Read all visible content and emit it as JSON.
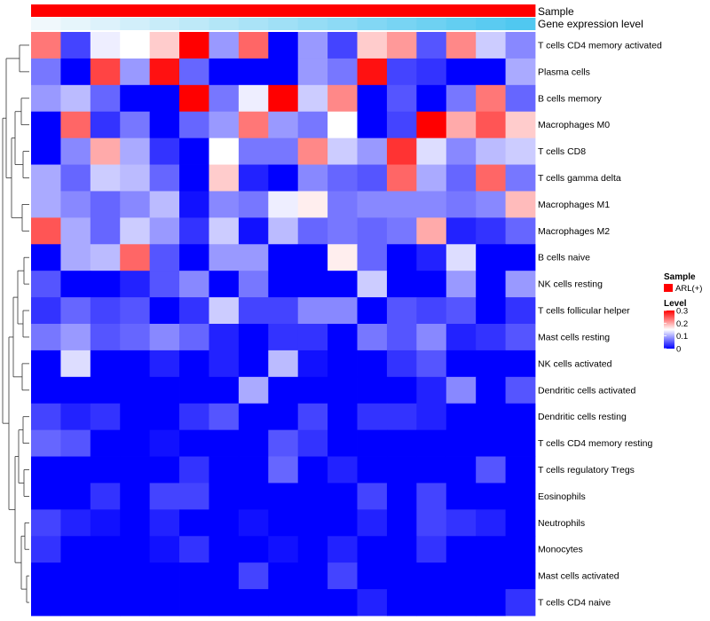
{
  "chart_data": {
    "type": "heatmap",
    "annotation_labels": [
      "Sample",
      "Gene expression level"
    ],
    "rows": [
      "T cells CD4 memory activated",
      "Plasma cells",
      "B cells memory",
      "Macrophages M0",
      "T cells CD8",
      "T cells gamma delta",
      "Macrophages M1",
      "Macrophages M2",
      "B cells naive",
      "NK cells resting",
      "T cells follicular helper",
      "Mast cells resting",
      "NK cells activated",
      "Dendritic cells activated",
      "Dendritic cells resting",
      "T cells CD4 memory resting",
      "T cells regulatory  Tregs",
      "Eosinophils",
      "Neutrophils",
      "Monocytes",
      "Mast cells activated",
      "T cells CD4 naive"
    ],
    "n_samples": 17,
    "values": [
      [
        0.23,
        0.04,
        0.14,
        0.15,
        0.18,
        0.3,
        0.09,
        0.24,
        0.0,
        0.09,
        0.04,
        0.18,
        0.21,
        0.05,
        0.22,
        0.12,
        0.08
      ],
      [
        0.07,
        0.0,
        0.26,
        0.09,
        0.29,
        0.06,
        0.0,
        0.0,
        0.0,
        0.09,
        0.07,
        0.29,
        0.04,
        0.03,
        0.0,
        0.0,
        0.1
      ],
      [
        0.09,
        0.11,
        0.06,
        0.0,
        0.0,
        0.3,
        0.07,
        0.14,
        0.3,
        0.12,
        0.22,
        0.0,
        0.05,
        0.0,
        0.07,
        0.23,
        0.06
      ],
      [
        0.0,
        0.24,
        0.03,
        0.07,
        0.0,
        0.06,
        0.09,
        0.23,
        0.09,
        0.07,
        0.15,
        0.0,
        0.04,
        0.3,
        0.2,
        0.25,
        0.18
      ],
      [
        0.0,
        0.08,
        0.2,
        0.1,
        0.03,
        0.0,
        0.15,
        0.07,
        0.07,
        0.22,
        0.12,
        0.09,
        0.27,
        0.13,
        0.08,
        0.11,
        0.12
      ],
      [
        0.1,
        0.06,
        0.12,
        0.11,
        0.06,
        0.0,
        0.18,
        0.02,
        0.0,
        0.08,
        0.06,
        0.05,
        0.24,
        0.1,
        0.06,
        0.24,
        0.07
      ],
      [
        0.1,
        0.08,
        0.06,
        0.08,
        0.11,
        0.01,
        0.08,
        0.07,
        0.14,
        0.16,
        0.07,
        0.08,
        0.08,
        0.08,
        0.07,
        0.08,
        0.19
      ],
      [
        0.25,
        0.1,
        0.06,
        0.12,
        0.09,
        0.03,
        0.12,
        0.01,
        0.11,
        0.06,
        0.07,
        0.06,
        0.07,
        0.2,
        0.02,
        0.03,
        0.06
      ],
      [
        0.0,
        0.1,
        0.11,
        0.24,
        0.05,
        0.0,
        0.09,
        0.09,
        0.0,
        0.0,
        0.16,
        0.06,
        0.0,
        0.02,
        0.13,
        0.0,
        0.0
      ],
      [
        0.05,
        0.0,
        0.0,
        0.02,
        0.05,
        0.08,
        0.0,
        0.07,
        0.0,
        0.0,
        0.0,
        0.12,
        0.0,
        0.0,
        0.09,
        0.0,
        0.09
      ],
      [
        0.03,
        0.06,
        0.04,
        0.05,
        0.0,
        0.03,
        0.12,
        0.04,
        0.04,
        0.08,
        0.08,
        0.0,
        0.05,
        0.04,
        0.05,
        0.0,
        0.03
      ],
      [
        0.07,
        0.09,
        0.05,
        0.06,
        0.08,
        0.06,
        0.02,
        0.0,
        0.03,
        0.03,
        0.0,
        0.07,
        0.05,
        0.08,
        0.02,
        0.03,
        0.05
      ],
      [
        0.0,
        0.13,
        0.0,
        0.0,
        0.02,
        0.0,
        0.02,
        0.0,
        0.11,
        0.01,
        0.0,
        0.0,
        0.03,
        0.05,
        0.0,
        0.0,
        0.0
      ],
      [
        0.0,
        0.0,
        0.0,
        0.0,
        0.0,
        0.0,
        0.0,
        0.1,
        0.0,
        0.0,
        0.0,
        0.0,
        0.0,
        0.02,
        0.08,
        0.0,
        0.05
      ],
      [
        0.04,
        0.02,
        0.03,
        0.0,
        0.0,
        0.03,
        0.05,
        0.0,
        0.0,
        0.04,
        0.0,
        0.03,
        0.03,
        0.02,
        0.0,
        0.0,
        0.0
      ],
      [
        0.06,
        0.05,
        0.0,
        0.0,
        0.01,
        0.0,
        0.0,
        0.0,
        0.05,
        0.03,
        0.0,
        0.0,
        0.0,
        0.0,
        0.0,
        0.0,
        0.0
      ],
      [
        0.0,
        0.0,
        0.0,
        0.0,
        0.0,
        0.03,
        0.0,
        0.0,
        0.06,
        0.0,
        0.02,
        0.0,
        0.0,
        0.0,
        0.0,
        0.05,
        0.0
      ],
      [
        0.0,
        0.0,
        0.03,
        0.0,
        0.04,
        0.04,
        0.0,
        0.0,
        0.0,
        0.0,
        0.0,
        0.04,
        0.0,
        0.04,
        0.0,
        0.0,
        0.0
      ],
      [
        0.04,
        0.02,
        0.01,
        0.0,
        0.02,
        0.0,
        0.0,
        0.01,
        0.0,
        0.0,
        0.0,
        0.02,
        0.0,
        0.04,
        0.03,
        0.02,
        0.0
      ],
      [
        0.03,
        0.0,
        0.0,
        0.0,
        0.01,
        0.03,
        0.0,
        0.0,
        0.01,
        0.0,
        0.02,
        0.0,
        0.0,
        0.03,
        0.0,
        0.0,
        0.0
      ],
      [
        0.0,
        0.0,
        0.0,
        0.0,
        0.0,
        0.0,
        0.0,
        0.04,
        0.0,
        0.0,
        0.04,
        0.0,
        0.0,
        0.0,
        0.0,
        0.0,
        0.0
      ],
      [
        0.0,
        0.0,
        0.0,
        0.0,
        0.0,
        0.0,
        0.0,
        0.0,
        0.0,
        0.0,
        0.0,
        0.02,
        0.0,
        0.0,
        0.0,
        0.0,
        0.03
      ]
    ],
    "gene_expression_levels": [
      0.0,
      0.06,
      0.12,
      0.19,
      0.25,
      0.31,
      0.38,
      0.44,
      0.5,
      0.56,
      0.62,
      0.69,
      0.75,
      0.81,
      0.88,
      0.94,
      1.0
    ],
    "color_scale": {
      "min": 0,
      "max": 0.3,
      "low": "#0000ff",
      "mid": "#ffffff",
      "high": "#ff0000"
    },
    "legend": {
      "sample_title": "Sample",
      "sample_item": "ARL(+)",
      "sample_color": "#ff0000",
      "level_title": "Level",
      "level_ticks": [
        "0",
        "0.1",
        "0.2",
        "0.3"
      ],
      "level_tick_values": [
        0,
        0.1,
        0.2,
        0.3
      ]
    },
    "dendrogram": "row"
  }
}
